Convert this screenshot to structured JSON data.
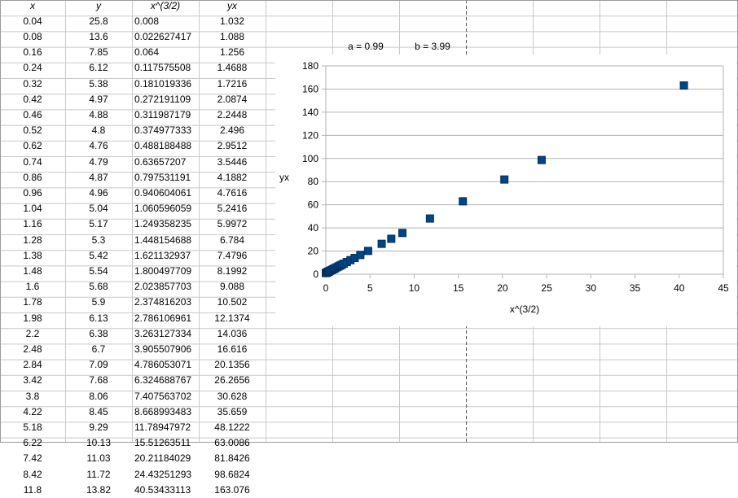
{
  "table": {
    "headers": [
      "x",
      "y",
      "x^(3/2)",
      "yx"
    ],
    "rows": [
      [
        "0.04",
        "25.8",
        "0.008",
        "1.032"
      ],
      [
        "0.08",
        "13.6",
        "0.022627417",
        "1.088"
      ],
      [
        "0.16",
        "7.85",
        "0.064",
        "1.256"
      ],
      [
        "0.24",
        "6.12",
        "0.117575508",
        "1.4688"
      ],
      [
        "0.32",
        "5.38",
        "0.181019336",
        "1.7216"
      ],
      [
        "0.42",
        "4.97",
        "0.272191109",
        "2.0874"
      ],
      [
        "0.46",
        "4.88",
        "0.311987179",
        "2.2448"
      ],
      [
        "0.52",
        "4.8",
        "0.374977333",
        "2.496"
      ],
      [
        "0.62",
        "4.76",
        "0.488188488",
        "2.9512"
      ],
      [
        "0.74",
        "4.79",
        "0.63657207",
        "3.5446"
      ],
      [
        "0.86",
        "4.87",
        "0.797531191",
        "4.1882"
      ],
      [
        "0.96",
        "4.96",
        "0.940604061",
        "4.7616"
      ],
      [
        "1.04",
        "5.04",
        "1.060596059",
        "5.2416"
      ],
      [
        "1.16",
        "5.17",
        "1.249358235",
        "5.9972"
      ],
      [
        "1.28",
        "5.3",
        "1.448154688",
        "6.784"
      ],
      [
        "1.38",
        "5.42",
        "1.621132937",
        "7.4796"
      ],
      [
        "1.48",
        "5.54",
        "1.800497709",
        "8.1992"
      ],
      [
        "1.6",
        "5.68",
        "2.023857703",
        "9.088"
      ],
      [
        "1.78",
        "5.9",
        "2.374816203",
        "10.502"
      ],
      [
        "1.98",
        "6.13",
        "2.786106961",
        "12.1374"
      ],
      [
        "2.2",
        "6.38",
        "3.263127334",
        "14.036"
      ],
      [
        "2.48",
        "6.7",
        "3.905507906",
        "16.616"
      ],
      [
        "2.84",
        "7.09",
        "4.786053071",
        "20.1356"
      ],
      [
        "3.42",
        "7.68",
        "6.324688767",
        "26.2656"
      ],
      [
        "3.8",
        "8.06",
        "7.407563702",
        "30.628"
      ],
      [
        "4.22",
        "8.45",
        "8.668993483",
        "35.659"
      ],
      [
        "5.18",
        "9.29",
        "11.78947972",
        "48.1222"
      ],
      [
        "6.22",
        "10.13",
        "15.51263511",
        "63.0086"
      ],
      [
        "7.42",
        "11.03",
        "20.21184029",
        "81.8426"
      ],
      [
        "8.42",
        "11.72",
        "24.43251293",
        "98.6824"
      ],
      [
        "11.8",
        "13.82",
        "40.53433113",
        "163.076"
      ]
    ]
  },
  "params": {
    "a_label": "a = 0.99",
    "b_label": "b = 3.99"
  },
  "chart_data": {
    "type": "scatter",
    "title": "",
    "xlabel": "x^(3/2)",
    "ylabel": "yx",
    "xlim": [
      0,
      45
    ],
    "ylim": [
      0,
      180
    ],
    "xticks": [
      0,
      5,
      10,
      15,
      20,
      25,
      30,
      35,
      40,
      45
    ],
    "yticks": [
      0,
      20,
      40,
      60,
      80,
      100,
      120,
      140,
      160,
      180
    ],
    "grid": "horizontal",
    "legend": "none",
    "marker_color": "#004586",
    "series": [
      {
        "x": [
          0.008,
          0.022627417,
          0.064,
          0.117575508,
          0.181019336,
          0.272191109,
          0.311987179,
          0.374977333,
          0.488188488,
          0.63657207,
          0.797531191,
          0.940604061,
          1.060596059,
          1.249358235,
          1.448154688,
          1.621132937,
          1.800497709,
          2.023857703,
          2.374816203,
          2.786106961,
          3.263127334,
          3.905507906,
          4.786053071,
          6.324688767,
          7.407563702,
          8.668993483,
          11.78947972,
          15.51263511,
          20.21184029,
          24.43251293,
          40.53433113
        ],
        "y": [
          1.032,
          1.088,
          1.256,
          1.4688,
          1.7216,
          2.0874,
          2.2448,
          2.496,
          2.9512,
          3.5446,
          4.1882,
          4.7616,
          5.2416,
          5.9972,
          6.784,
          7.4796,
          8.1992,
          9.088,
          10.502,
          12.1374,
          14.036,
          16.616,
          20.1356,
          26.2656,
          30.628,
          35.659,
          48.1222,
          63.0086,
          81.8426,
          98.6824,
          163.076
        ]
      }
    ]
  }
}
